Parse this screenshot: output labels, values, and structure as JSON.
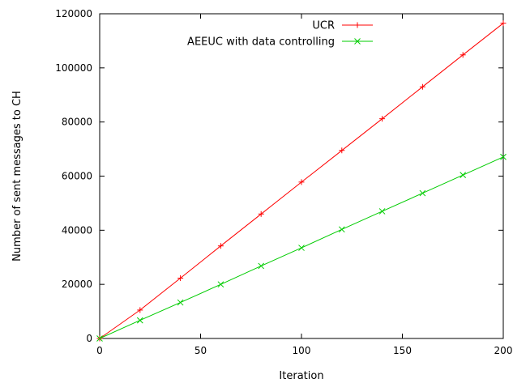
{
  "chart_data": {
    "type": "line",
    "title": "",
    "xlabel": "Iteration",
    "ylabel": "Number of sent messages to CH",
    "xlim": [
      0,
      200
    ],
    "ylim": [
      0,
      120000
    ],
    "xticks": [
      0,
      50,
      100,
      150,
      200
    ],
    "yticks": [
      0,
      20000,
      40000,
      60000,
      80000,
      100000,
      120000
    ],
    "grid": false,
    "legend_position": "top-right",
    "series": [
      {
        "name": "UCR",
        "color": "#ff0000",
        "marker": "plus",
        "x": [
          0,
          20,
          40,
          60,
          80,
          100,
          120,
          140,
          160,
          180,
          200
        ],
        "y": [
          0,
          10500,
          22300,
          34200,
          46000,
          57800,
          69500,
          81200,
          93000,
          104800,
          116500
        ]
      },
      {
        "name": "AEEUC with data controlling",
        "color": "#00cc00",
        "marker": "cross",
        "x": [
          0,
          20,
          40,
          60,
          80,
          100,
          120,
          140,
          160,
          180,
          200
        ],
        "y": [
          0,
          6700,
          13300,
          20000,
          26800,
          33500,
          40300,
          47000,
          53700,
          60400,
          67100
        ]
      }
    ]
  }
}
